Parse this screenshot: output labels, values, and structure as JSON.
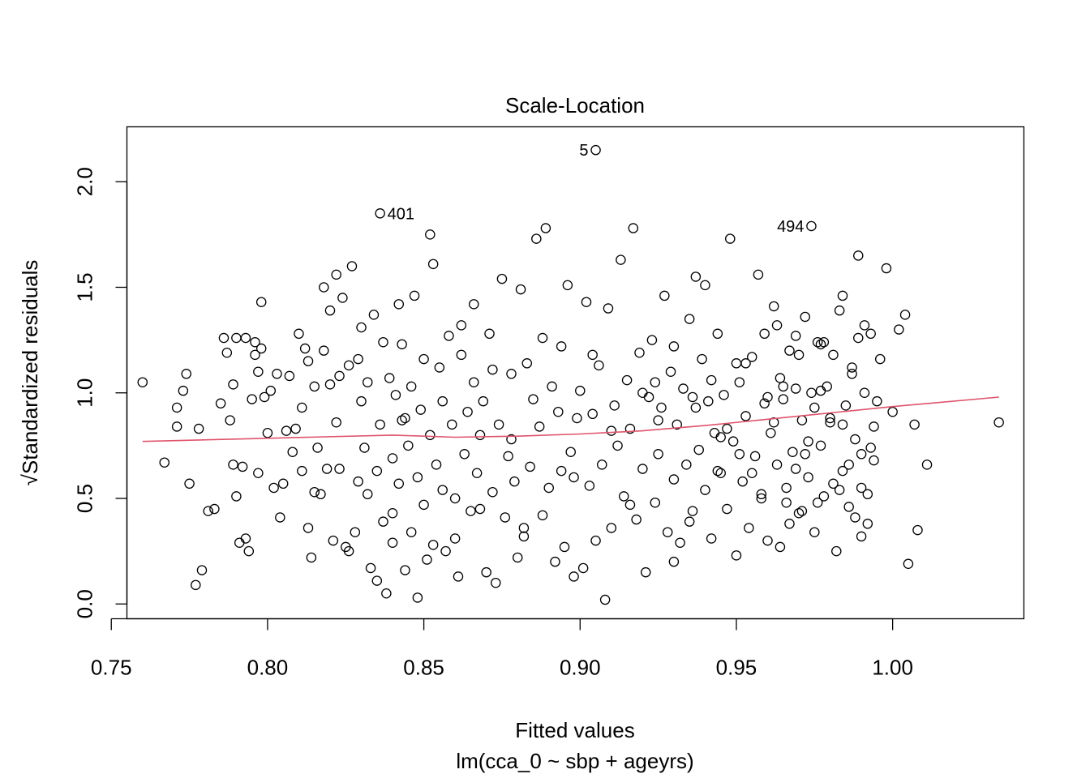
{
  "chart_data": {
    "type": "scatter",
    "title": "Scale-Location",
    "xlabel": "Fitted values",
    "subtitle": "lm(cca_0 ~ sbp + ageyrs)",
    "ylabel": "√Standardized residuals",
    "xlim": [
      0.755,
      1.042
    ],
    "ylim": [
      -0.07,
      2.26
    ],
    "xticks": [
      0.75,
      0.8,
      0.85,
      0.9,
      0.95,
      1.0
    ],
    "xtick_labels": [
      "0.75",
      "0.80",
      "0.85",
      "0.90",
      "0.95",
      "1.00"
    ],
    "yticks": [
      0.0,
      0.5,
      1.0,
      1.5,
      2.0
    ],
    "ytick_labels": [
      "0.0",
      "0.5",
      "1.0",
      "1.5",
      "2.0"
    ],
    "grid": false,
    "colors": {
      "points": "#000000",
      "smooth": "#DF536B"
    },
    "labeled_points": [
      {
        "label": "5",
        "x": 0.905,
        "y": 2.15,
        "side": "left"
      },
      {
        "label": "401",
        "x": 0.836,
        "y": 1.85,
        "side": "right"
      },
      {
        "label": "494",
        "x": 0.974,
        "y": 1.79,
        "side": "left"
      }
    ],
    "smooth_line": {
      "x": [
        0.76,
        0.8,
        0.84,
        0.86,
        0.88,
        0.9,
        0.92,
        0.94,
        0.96,
        0.98,
        1.0,
        1.034
      ],
      "y": [
        0.77,
        0.785,
        0.8,
        0.79,
        0.795,
        0.805,
        0.82,
        0.845,
        0.875,
        0.905,
        0.935,
        0.98
      ]
    },
    "points": [
      [
        0.76,
        1.05
      ],
      [
        0.767,
        0.67
      ],
      [
        0.771,
        0.93
      ],
      [
        0.773,
        1.01
      ],
      [
        0.774,
        1.09
      ],
      [
        0.775,
        0.57
      ],
      [
        0.771,
        0.84
      ],
      [
        0.777,
        0.09
      ],
      [
        0.779,
        0.16
      ],
      [
        0.778,
        0.83
      ],
      [
        0.781,
        0.44
      ],
      [
        0.783,
        0.45
      ],
      [
        0.785,
        0.95
      ],
      [
        0.786,
        1.26
      ],
      [
        0.787,
        1.19
      ],
      [
        0.788,
        0.87
      ],
      [
        0.789,
        1.04
      ],
      [
        0.789,
        0.66
      ],
      [
        0.79,
        1.26
      ],
      [
        0.79,
        0.51
      ],
      [
        0.791,
        0.29
      ],
      [
        0.792,
        0.65
      ],
      [
        0.793,
        0.31
      ],
      [
        0.793,
        1.26
      ],
      [
        0.794,
        0.25
      ],
      [
        0.795,
        0.97
      ],
      [
        0.796,
        1.18
      ],
      [
        0.796,
        1.24
      ],
      [
        0.797,
        0.62
      ],
      [
        0.797,
        1.1
      ],
      [
        0.798,
        1.43
      ],
      [
        0.798,
        1.21
      ],
      [
        0.799,
        0.98
      ],
      [
        0.8,
        0.81
      ],
      [
        0.801,
        1.01
      ],
      [
        0.802,
        0.55
      ],
      [
        0.803,
        1.09
      ],
      [
        0.804,
        0.41
      ],
      [
        0.805,
        0.57
      ],
      [
        0.806,
        0.82
      ],
      [
        0.807,
        1.08
      ],
      [
        0.808,
        0.72
      ],
      [
        0.809,
        0.83
      ],
      [
        0.81,
        1.28
      ],
      [
        0.811,
        0.63
      ],
      [
        0.811,
        0.93
      ],
      [
        0.812,
        1.21
      ],
      [
        0.813,
        0.36
      ],
      [
        0.813,
        1.15
      ],
      [
        0.814,
        0.22
      ],
      [
        0.815,
        0.53
      ],
      [
        0.815,
        1.03
      ],
      [
        0.816,
        0.74
      ],
      [
        0.817,
        0.52
      ],
      [
        0.818,
        1.5
      ],
      [
        0.818,
        1.2
      ],
      [
        0.819,
        0.64
      ],
      [
        0.82,
        1.39
      ],
      [
        0.82,
        1.04
      ],
      [
        0.821,
        0.3
      ],
      [
        0.822,
        1.56
      ],
      [
        0.822,
        0.86
      ],
      [
        0.823,
        0.64
      ],
      [
        0.823,
        1.08
      ],
      [
        0.824,
        1.45
      ],
      [
        0.825,
        0.27
      ],
      [
        0.826,
        0.25
      ],
      [
        0.826,
        1.13
      ],
      [
        0.827,
        1.6
      ],
      [
        0.828,
        0.34
      ],
      [
        0.829,
        0.58
      ],
      [
        0.829,
        1.16
      ],
      [
        0.83,
        1.31
      ],
      [
        0.83,
        0.96
      ],
      [
        0.831,
        0.74
      ],
      [
        0.832,
        0.52
      ],
      [
        0.832,
        1.05
      ],
      [
        0.833,
        0.17
      ],
      [
        0.834,
        1.37
      ],
      [
        0.835,
        0.11
      ],
      [
        0.835,
        0.63
      ],
      [
        0.836,
        0.85
      ],
      [
        0.837,
        0.39
      ],
      [
        0.837,
        1.24
      ],
      [
        0.838,
        0.05
      ],
      [
        0.839,
        1.07
      ],
      [
        0.84,
        0.69
      ],
      [
        0.84,
        0.43
      ],
      [
        0.841,
        0.99
      ],
      [
        0.842,
        0.57
      ],
      [
        0.843,
        0.87
      ],
      [
        0.843,
        1.23
      ],
      [
        0.844,
        0.16
      ],
      [
        0.845,
        0.75
      ],
      [
        0.846,
        0.34
      ],
      [
        0.846,
        1.03
      ],
      [
        0.847,
        1.46
      ],
      [
        0.848,
        0.6
      ],
      [
        0.849,
        0.92
      ],
      [
        0.85,
        0.47
      ],
      [
        0.85,
        1.16
      ],
      [
        0.851,
        0.21
      ],
      [
        0.852,
        0.8
      ],
      [
        0.853,
        1.61
      ],
      [
        0.853,
        0.28
      ],
      [
        0.854,
        0.66
      ],
      [
        0.855,
        1.12
      ],
      [
        0.856,
        0.96
      ],
      [
        0.857,
        0.25
      ],
      [
        0.858,
        1.27
      ],
      [
        0.859,
        0.85
      ],
      [
        0.86,
        0.31
      ],
      [
        0.86,
        0.5
      ],
      [
        0.861,
        0.13
      ],
      [
        0.862,
        1.18
      ],
      [
        0.863,
        0.71
      ],
      [
        0.864,
        0.91
      ],
      [
        0.865,
        0.44
      ],
      [
        0.866,
        1.05
      ],
      [
        0.866,
        1.42
      ],
      [
        0.867,
        0.62
      ],
      [
        0.868,
        0.8
      ],
      [
        0.869,
        0.96
      ],
      [
        0.87,
        0.15
      ],
      [
        0.871,
        1.28
      ],
      [
        0.872,
        0.53
      ],
      [
        0.873,
        0.1
      ],
      [
        0.874,
        0.85
      ],
      [
        0.875,
        1.54
      ],
      [
        0.876,
        0.41
      ],
      [
        0.877,
        0.7
      ],
      [
        0.878,
        1.09
      ],
      [
        0.879,
        0.58
      ],
      [
        0.88,
        0.22
      ],
      [
        0.881,
        1.49
      ],
      [
        0.882,
        0.32
      ],
      [
        0.883,
        1.14
      ],
      [
        0.884,
        0.65
      ],
      [
        0.885,
        0.97
      ],
      [
        0.886,
        1.73
      ],
      [
        0.887,
        0.84
      ],
      [
        0.888,
        0.42
      ],
      [
        0.889,
        1.78
      ],
      [
        0.89,
        0.55
      ],
      [
        0.891,
        1.03
      ],
      [
        0.892,
        0.2
      ],
      [
        0.893,
        0.91
      ],
      [
        0.894,
        1.22
      ],
      [
        0.895,
        0.27
      ],
      [
        0.896,
        1.51
      ],
      [
        0.897,
        0.72
      ],
      [
        0.898,
        0.6
      ],
      [
        0.899,
        0.88
      ],
      [
        0.9,
        1.01
      ],
      [
        0.901,
        0.17
      ],
      [
        0.902,
        1.43
      ],
      [
        0.903,
        0.56
      ],
      [
        0.904,
        0.9
      ],
      [
        0.905,
        0.3
      ],
      [
        0.906,
        1.13
      ],
      [
        0.907,
        0.66
      ],
      [
        0.908,
        0.02
      ],
      [
        0.909,
        1.4
      ],
      [
        0.91,
        0.36
      ],
      [
        0.911,
        0.94
      ],
      [
        0.912,
        0.75
      ],
      [
        0.913,
        1.63
      ],
      [
        0.914,
        0.51
      ],
      [
        0.915,
        1.06
      ],
      [
        0.916,
        0.83
      ],
      [
        0.917,
        1.78
      ],
      [
        0.918,
        0.4
      ],
      [
        0.919,
        1.19
      ],
      [
        0.92,
        0.64
      ],
      [
        0.921,
        0.15
      ],
      [
        0.922,
        0.98
      ],
      [
        0.923,
        1.25
      ],
      [
        0.924,
        0.48
      ],
      [
        0.925,
        0.71
      ],
      [
        0.926,
        0.93
      ],
      [
        0.927,
        1.46
      ],
      [
        0.928,
        0.34
      ],
      [
        0.929,
        1.1
      ],
      [
        0.93,
        0.59
      ],
      [
        0.931,
        0.85
      ],
      [
        0.932,
        0.29
      ],
      [
        0.933,
        1.02
      ],
      [
        0.934,
        0.66
      ],
      [
        0.935,
        1.35
      ],
      [
        0.936,
        0.44
      ],
      [
        0.937,
        0.93
      ],
      [
        0.938,
        0.73
      ],
      [
        0.939,
        1.16
      ],
      [
        0.94,
        0.54
      ],
      [
        0.941,
        0.96
      ],
      [
        0.942,
        0.31
      ],
      [
        0.943,
        0.81
      ],
      [
        0.944,
        1.28
      ],
      [
        0.945,
        0.62
      ],
      [
        0.946,
        0.99
      ],
      [
        0.947,
        0.45
      ],
      [
        0.948,
        1.73
      ],
      [
        0.949,
        0.77
      ],
      [
        0.95,
        0.23
      ],
      [
        0.951,
        1.05
      ],
      [
        0.952,
        0.58
      ],
      [
        0.953,
        0.89
      ],
      [
        0.954,
        0.36
      ],
      [
        0.955,
        1.17
      ],
      [
        0.956,
        0.7
      ],
      [
        0.957,
        1.56
      ],
      [
        0.958,
        0.5
      ],
      [
        0.959,
        0.95
      ],
      [
        0.96,
        0.3
      ],
      [
        0.961,
        0.81
      ],
      [
        0.962,
        1.41
      ],
      [
        0.963,
        0.66
      ],
      [
        0.964,
        0.27
      ],
      [
        0.965,
        0.97
      ],
      [
        0.966,
        0.55
      ],
      [
        0.967,
        1.2
      ],
      [
        0.968,
        0.72
      ],
      [
        0.969,
        1.27
      ],
      [
        0.97,
        0.43
      ],
      [
        0.971,
        0.87
      ],
      [
        0.972,
        1.36
      ],
      [
        0.973,
        0.6
      ],
      [
        0.974,
        1.0
      ],
      [
        0.975,
        0.34
      ],
      [
        0.976,
        1.24
      ],
      [
        0.977,
        0.75
      ],
      [
        0.978,
        0.51
      ],
      [
        0.979,
        1.03
      ],
      [
        0.98,
        0.86
      ],
      [
        0.981,
        1.18
      ],
      [
        0.982,
        0.25
      ],
      [
        0.983,
        1.39
      ],
      [
        0.984,
        0.63
      ],
      [
        0.985,
        0.94
      ],
      [
        0.986,
        0.46
      ],
      [
        0.987,
        1.12
      ],
      [
        0.988,
        0.78
      ],
      [
        0.989,
        1.65
      ],
      [
        0.99,
        0.55
      ],
      [
        0.991,
        1.0
      ],
      [
        0.992,
        0.38
      ],
      [
        0.993,
        1.28
      ],
      [
        0.994,
        0.68
      ],
      [
        0.84,
        0.29
      ],
      [
        0.842,
        1.42
      ],
      [
        0.844,
        0.88
      ],
      [
        0.848,
        0.03
      ],
      [
        0.852,
        1.75
      ],
      [
        0.856,
        0.54
      ],
      [
        0.862,
        1.32
      ],
      [
        0.868,
        0.45
      ],
      [
        0.872,
        1.11
      ],
      [
        0.878,
        0.78
      ],
      [
        0.882,
        0.36
      ],
      [
        0.888,
        1.26
      ],
      [
        0.894,
        0.63
      ],
      [
        0.898,
        0.13
      ],
      [
        0.904,
        1.18
      ],
      [
        0.91,
        0.82
      ],
      [
        0.916,
        0.47
      ],
      [
        0.924,
        1.05
      ],
      [
        0.93,
        0.2
      ],
      [
        0.936,
        0.98
      ],
      [
        0.92,
        1.0
      ],
      [
        0.925,
        0.87
      ],
      [
        0.93,
        1.22
      ],
      [
        0.935,
        0.39
      ],
      [
        0.94,
        1.51
      ],
      [
        0.945,
        0.79
      ],
      [
        0.95,
        1.14
      ],
      [
        0.955,
        0.62
      ],
      [
        0.96,
        0.98
      ],
      [
        0.963,
        1.32
      ],
      [
        0.966,
        0.48
      ],
      [
        0.969,
        1.02
      ],
      [
        0.972,
        0.71
      ],
      [
        0.975,
        0.93
      ],
      [
        0.978,
        1.24
      ],
      [
        0.981,
        0.57
      ],
      [
        0.984,
        0.85
      ],
      [
        0.987,
        1.09
      ],
      [
        0.99,
        0.32
      ],
      [
        0.993,
        0.74
      ],
      [
        0.937,
        1.55
      ],
      [
        0.942,
        1.06
      ],
      [
        0.944,
        0.63
      ],
      [
        0.947,
        0.83
      ],
      [
        0.951,
        0.71
      ],
      [
        0.953,
        1.14
      ],
      [
        0.958,
        0.52
      ],
      [
        0.959,
        1.28
      ],
      [
        0.962,
        0.86
      ],
      [
        0.964,
        1.07
      ],
      [
        0.967,
        0.38
      ],
      [
        0.969,
        0.64
      ],
      [
        0.97,
        1.18
      ],
      [
        0.973,
        0.77
      ],
      [
        0.976,
        0.48
      ],
      [
        0.977,
        1.01
      ],
      [
        0.98,
        0.88
      ],
      [
        0.984,
        1.46
      ],
      [
        0.986,
        0.66
      ],
      [
        0.988,
        0.41
      ],
      [
        0.989,
        1.26
      ],
      [
        0.99,
        0.71
      ],
      [
        0.991,
        1.32
      ],
      [
        0.992,
        0.52
      ],
      [
        0.994,
        0.84
      ],
      [
        0.995,
        0.96
      ],
      [
        0.996,
        1.16
      ],
      [
        0.998,
        1.59
      ],
      [
        1.0,
        0.91
      ],
      [
        1.002,
        1.3
      ],
      [
        1.004,
        1.37
      ],
      [
        1.005,
        0.19
      ],
      [
        1.007,
        0.85
      ],
      [
        1.008,
        0.35
      ],
      [
        1.011,
        0.66
      ],
      [
        1.034,
        0.86
      ],
      [
        0.983,
        0.54
      ],
      [
        0.977,
        1.23
      ],
      [
        0.971,
        0.44
      ],
      [
        0.965,
        1.03
      ]
    ]
  }
}
